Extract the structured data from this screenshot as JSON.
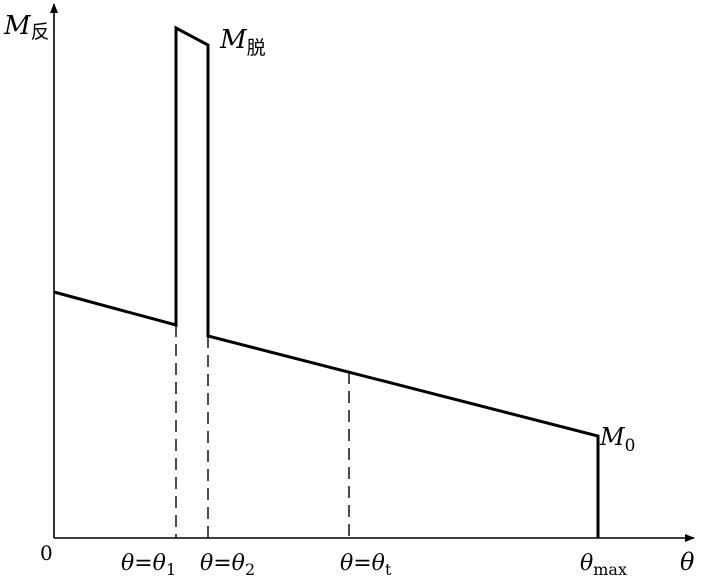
{
  "axes": {
    "y_label": "M",
    "y_label_sub": "反",
    "x_label": "θ",
    "origin_label": "0"
  },
  "curve_labels": {
    "peak": {
      "main": "M",
      "sub": "脱"
    },
    "end": {
      "main": "M",
      "sub": "0"
    }
  },
  "tick_labels": [
    {
      "text": "θ=θ",
      "sub": "1"
    },
    {
      "text": "θ=θ",
      "sub": "2"
    },
    {
      "text": "θ=θ",
      "sub": "t"
    },
    {
      "text": "θ",
      "sub": "max"
    }
  ]
}
